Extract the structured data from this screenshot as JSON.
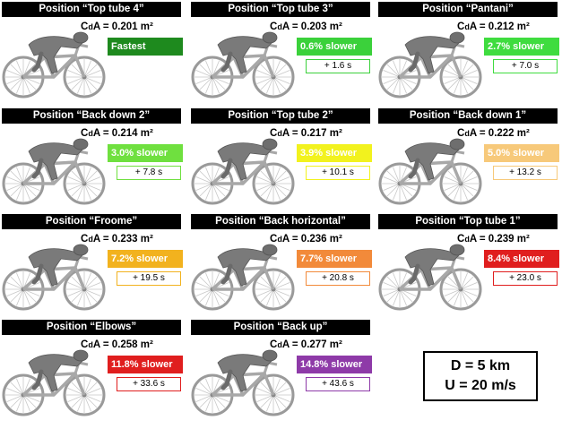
{
  "panels": [
    {
      "title": "Position “Top tube 4”",
      "cda": "0.201",
      "unit": " m²",
      "badge": "Fastest",
      "time": "",
      "color": "#1e8a1e"
    },
    {
      "title": "Position “Top tube 3”",
      "cda": "0.203",
      "unit": " m²",
      "badge": "0.6% slower",
      "time": "+ 1.6 s",
      "color": "#3bd13b"
    },
    {
      "title": "Position “Pantani”",
      "cda": "0.212",
      "unit": " m²",
      "badge": "2.7% slower",
      "time": "+ 7.0 s",
      "color": "#3fdc3f"
    },
    {
      "title": "Position “Back down 2”",
      "cda": "0.214",
      "unit": " m²",
      "badge": "3.0% slower",
      "time": "+ 7.8 s",
      "color": "#6fe03f"
    },
    {
      "title": "Position “Top tube 2”",
      "cda": "0.217",
      "unit": " m²",
      "badge": "3.9% slower",
      "time": "+ 10.1 s",
      "color": "#f2f21e"
    },
    {
      "title": "Position “Back down 1”",
      "cda": "0.222",
      "unit": " m²",
      "badge": "5.0% slower",
      "time": "+ 13.2 s",
      "color": "#f7c97a"
    },
    {
      "title": "Position “Froome”",
      "cda": "0.233",
      "unit": " m²",
      "badge": "7.2% slower",
      "time": "+ 19.5 s",
      "color": "#f2b21e"
    },
    {
      "title": "Position “Back horizontal”",
      "cda": "0.236",
      "unit": " m²",
      "badge": "7.7% slower",
      "time": "+ 20.8 s",
      "color": "#f28a3a"
    },
    {
      "title": "Position “Top tube 1”",
      "cda": "0.239",
      "unit": " m²",
      "badge": "8.4% slower",
      "time": "+ 23.0 s",
      "color": "#e01e1e"
    },
    {
      "title": "Position “Elbows”",
      "cda": "0.258",
      "unit": " m²",
      "badge": "11.8% slower",
      "time": "+ 33.6 s",
      "color": "#e01e1e"
    },
    {
      "title": "Position “Back up”",
      "cda": "0.277",
      "unit": " m²",
      "badge": "14.8% slower",
      "time": "+ 43.6 s",
      "color": "#8e3aa8"
    }
  ],
  "cda_label_c": "C",
  "cda_label_d": "d",
  "cda_label_rest": "A = ",
  "legend": {
    "distance": "D = 5 km",
    "speed": "U = 20 m/s"
  }
}
